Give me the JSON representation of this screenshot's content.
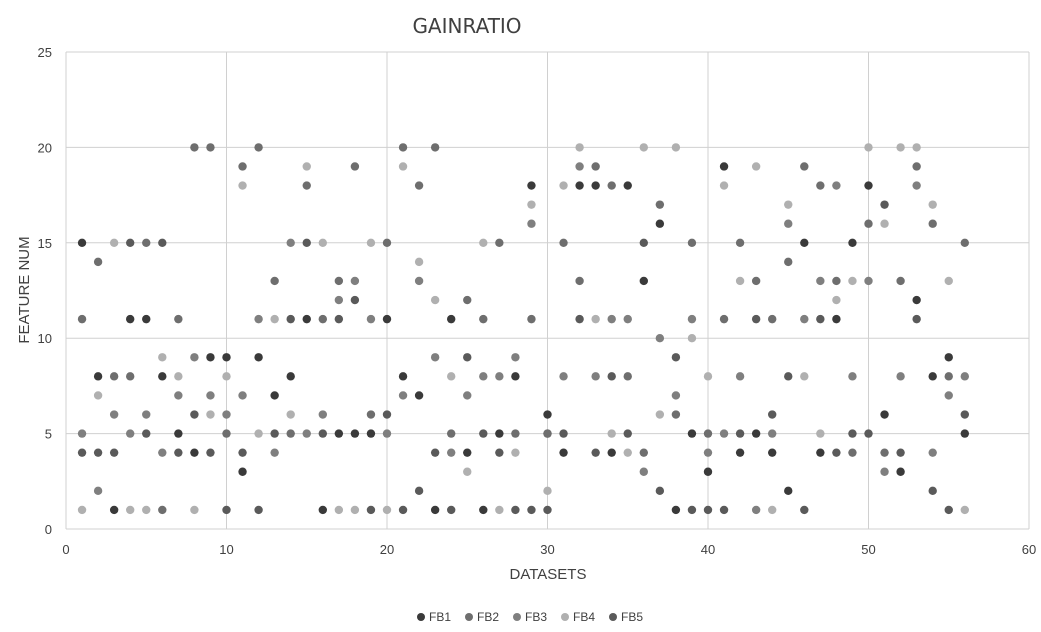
{
  "chart_data": {
    "type": "scatter",
    "title": "GAINRATIO",
    "xlabel": "DATASETS",
    "ylabel": "FEATURE NUM",
    "xlim": [
      0,
      60
    ],
    "ylim": [
      0,
      25
    ],
    "xticks": [
      0,
      10,
      20,
      30,
      40,
      50,
      60
    ],
    "yticks": [
      0,
      5,
      10,
      15,
      20,
      25
    ],
    "grid": true,
    "legend": "bottom-center",
    "series": [
      {
        "name": "FB1",
        "color": "#3a3a3a",
        "points": [
          [
            1,
            15
          ],
          [
            2,
            8
          ],
          [
            3,
            1
          ],
          [
            4,
            11
          ],
          [
            5,
            11
          ],
          [
            6,
            8
          ],
          [
            7,
            5
          ],
          [
            8,
            4
          ],
          [
            9,
            9
          ],
          [
            10,
            9
          ],
          [
            11,
            3
          ],
          [
            12,
            9
          ],
          [
            13,
            7
          ],
          [
            14,
            8
          ],
          [
            15,
            11
          ],
          [
            16,
            1
          ],
          [
            17,
            5
          ],
          [
            18,
            5
          ],
          [
            19,
            5
          ],
          [
            20,
            11
          ],
          [
            21,
            8
          ],
          [
            22,
            7
          ],
          [
            23,
            1
          ],
          [
            24,
            11
          ],
          [
            25,
            4
          ],
          [
            26,
            1
          ],
          [
            27,
            5
          ],
          [
            28,
            8
          ],
          [
            29,
            18
          ],
          [
            30,
            6
          ],
          [
            31,
            4
          ],
          [
            32,
            18
          ],
          [
            33,
            18
          ],
          [
            34,
            4
          ],
          [
            35,
            18
          ],
          [
            36,
            13
          ],
          [
            37,
            16
          ],
          [
            38,
            1
          ],
          [
            39,
            5
          ],
          [
            40,
            3
          ],
          [
            41,
            19
          ],
          [
            42,
            4
          ],
          [
            43,
            5
          ],
          [
            44,
            4
          ],
          [
            45,
            2
          ],
          [
            46,
            15
          ],
          [
            47,
            4
          ],
          [
            48,
            11
          ],
          [
            49,
            15
          ],
          [
            50,
            18
          ],
          [
            51,
            6
          ],
          [
            52,
            3
          ],
          [
            53,
            12
          ],
          [
            54,
            8
          ],
          [
            55,
            9
          ],
          [
            56,
            5
          ]
        ]
      },
      {
        "name": "FB2",
        "color": "#6e6e6e",
        "points": [
          [
            1,
            11
          ],
          [
            2,
            14
          ],
          [
            3,
            8
          ],
          [
            4,
            8
          ],
          [
            5,
            15
          ],
          [
            6,
            1
          ],
          [
            7,
            11
          ],
          [
            8,
            20
          ],
          [
            9,
            20
          ],
          [
            10,
            5
          ],
          [
            11,
            19
          ],
          [
            12,
            20
          ],
          [
            13,
            13
          ],
          [
            14,
            5
          ],
          [
            15,
            18
          ],
          [
            16,
            11
          ],
          [
            17,
            13
          ],
          [
            18,
            19
          ],
          [
            19,
            6
          ],
          [
            20,
            15
          ],
          [
            21,
            20
          ],
          [
            22,
            18
          ],
          [
            23,
            20
          ],
          [
            24,
            5
          ],
          [
            25,
            12
          ],
          [
            26,
            11
          ],
          [
            27,
            15
          ],
          [
            28,
            5
          ],
          [
            29,
            11
          ],
          [
            30,
            5
          ],
          [
            31,
            15
          ],
          [
            32,
            13
          ],
          [
            33,
            19
          ],
          [
            34,
            18
          ],
          [
            35,
            8
          ],
          [
            36,
            4
          ],
          [
            37,
            17
          ],
          [
            38,
            6
          ],
          [
            39,
            15
          ],
          [
            40,
            5
          ],
          [
            41,
            11
          ],
          [
            42,
            15
          ],
          [
            43,
            13
          ],
          [
            44,
            11
          ],
          [
            45,
            14
          ],
          [
            46,
            19
          ],
          [
            47,
            18
          ],
          [
            48,
            13
          ],
          [
            49,
            4
          ],
          [
            50,
            16
          ],
          [
            51,
            4
          ],
          [
            52,
            13
          ],
          [
            53,
            19
          ],
          [
            54,
            16
          ],
          [
            55,
            8
          ],
          [
            56,
            15
          ]
        ]
      },
      {
        "name": "FB3",
        "color": "#7f7f7f",
        "points": [
          [
            1,
            5
          ],
          [
            2,
            2
          ],
          [
            3,
            6
          ],
          [
            4,
            5
          ],
          [
            5,
            6
          ],
          [
            6,
            4
          ],
          [
            7,
            7
          ],
          [
            8,
            9
          ],
          [
            9,
            7
          ],
          [
            10,
            6
          ],
          [
            11,
            7
          ],
          [
            12,
            11
          ],
          [
            13,
            4
          ],
          [
            14,
            15
          ],
          [
            15,
            5
          ],
          [
            16,
            6
          ],
          [
            17,
            12
          ],
          [
            18,
            13
          ],
          [
            19,
            11
          ],
          [
            20,
            5
          ],
          [
            21,
            7
          ],
          [
            22,
            13
          ],
          [
            23,
            9
          ],
          [
            24,
            4
          ],
          [
            25,
            7
          ],
          [
            26,
            8
          ],
          [
            27,
            8
          ],
          [
            28,
            9
          ],
          [
            29,
            16
          ],
          [
            30,
            5
          ],
          [
            31,
            8
          ],
          [
            32,
            19
          ],
          [
            33,
            8
          ],
          [
            34,
            11
          ],
          [
            35,
            11
          ],
          [
            36,
            3
          ],
          [
            37,
            10
          ],
          [
            38,
            7
          ],
          [
            39,
            11
          ],
          [
            40,
            4
          ],
          [
            41,
            5
          ],
          [
            42,
            8
          ],
          [
            43,
            1
          ],
          [
            44,
            5
          ],
          [
            45,
            16
          ],
          [
            46,
            11
          ],
          [
            47,
            13
          ],
          [
            48,
            18
          ],
          [
            49,
            8
          ],
          [
            50,
            13
          ],
          [
            51,
            3
          ],
          [
            52,
            8
          ],
          [
            53,
            18
          ],
          [
            54,
            4
          ],
          [
            55,
            7
          ],
          [
            56,
            8
          ]
        ]
      },
      {
        "name": "FB4",
        "color": "#b0b0b0",
        "points": [
          [
            1,
            1
          ],
          [
            2,
            7
          ],
          [
            3,
            15
          ],
          [
            4,
            1
          ],
          [
            5,
            1
          ],
          [
            6,
            9
          ],
          [
            7,
            8
          ],
          [
            8,
            1
          ],
          [
            9,
            6
          ],
          [
            10,
            8
          ],
          [
            11,
            18
          ],
          [
            12,
            5
          ],
          [
            13,
            11
          ],
          [
            14,
            6
          ],
          [
            15,
            19
          ],
          [
            16,
            15
          ],
          [
            17,
            1
          ],
          [
            18,
            1
          ],
          [
            19,
            15
          ],
          [
            20,
            1
          ],
          [
            21,
            19
          ],
          [
            22,
            14
          ],
          [
            23,
            12
          ],
          [
            24,
            8
          ],
          [
            25,
            3
          ],
          [
            26,
            15
          ],
          [
            27,
            1
          ],
          [
            28,
            4
          ],
          [
            29,
            17
          ],
          [
            30,
            2
          ],
          [
            31,
            18
          ],
          [
            32,
            20
          ],
          [
            33,
            11
          ],
          [
            34,
            5
          ],
          [
            35,
            4
          ],
          [
            36,
            20
          ],
          [
            37,
            6
          ],
          [
            38,
            20
          ],
          [
            39,
            10
          ],
          [
            40,
            8
          ],
          [
            41,
            18
          ],
          [
            42,
            13
          ],
          [
            43,
            19
          ],
          [
            44,
            1
          ],
          [
            45,
            17
          ],
          [
            46,
            8
          ],
          [
            47,
            5
          ],
          [
            48,
            12
          ],
          [
            49,
            13
          ],
          [
            50,
            20
          ],
          [
            51,
            16
          ],
          [
            52,
            20
          ],
          [
            53,
            20
          ],
          [
            54,
            17
          ],
          [
            55,
            13
          ],
          [
            56,
            1
          ]
        ]
      },
      {
        "name": "FB5",
        "color": "#5a5a5a",
        "points": [
          [
            1,
            4
          ],
          [
            2,
            4
          ],
          [
            3,
            4
          ],
          [
            4,
            15
          ],
          [
            5,
            5
          ],
          [
            6,
            15
          ],
          [
            7,
            4
          ],
          [
            8,
            6
          ],
          [
            9,
            4
          ],
          [
            10,
            1
          ],
          [
            11,
            4
          ],
          [
            12,
            1
          ],
          [
            13,
            5
          ],
          [
            14,
            11
          ],
          [
            15,
            15
          ],
          [
            16,
            5
          ],
          [
            17,
            11
          ],
          [
            18,
            12
          ],
          [
            19,
            1
          ],
          [
            20,
            6
          ],
          [
            21,
            1
          ],
          [
            22,
            2
          ],
          [
            23,
            4
          ],
          [
            24,
            1
          ],
          [
            25,
            9
          ],
          [
            26,
            5
          ],
          [
            27,
            4
          ],
          [
            28,
            1
          ],
          [
            29,
            1
          ],
          [
            30,
            1
          ],
          [
            31,
            5
          ],
          [
            32,
            11
          ],
          [
            33,
            4
          ],
          [
            34,
            8
          ],
          [
            35,
            5
          ],
          [
            36,
            15
          ],
          [
            37,
            2
          ],
          [
            38,
            9
          ],
          [
            39,
            1
          ],
          [
            40,
            1
          ],
          [
            41,
            1
          ],
          [
            42,
            5
          ],
          [
            43,
            11
          ],
          [
            44,
            6
          ],
          [
            45,
            8
          ],
          [
            46,
            1
          ],
          [
            47,
            11
          ],
          [
            48,
            4
          ],
          [
            49,
            5
          ],
          [
            50,
            5
          ],
          [
            51,
            17
          ],
          [
            52,
            4
          ],
          [
            53,
            11
          ],
          [
            54,
            2
          ],
          [
            55,
            1
          ],
          [
            56,
            6
          ]
        ]
      }
    ]
  }
}
